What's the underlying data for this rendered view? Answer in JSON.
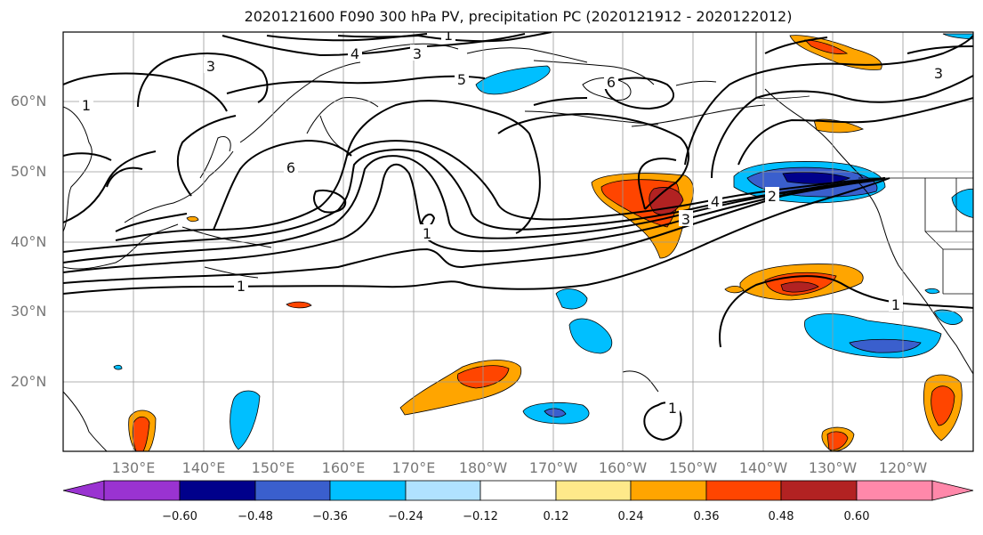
{
  "title": "2020121600 F090 300 hPa PV, precipitation PC (2020121912 - 2020122012)",
  "lat_labels": [
    "60°N",
    "50°N",
    "40°N",
    "30°N",
    "20°N"
  ],
  "lon_labels": [
    "130°E",
    "140°E",
    "150°E",
    "160°E",
    "170°E",
    "180°W",
    "170°W",
    "160°W",
    "150°W",
    "140°W",
    "130°W",
    "120°W"
  ],
  "contour_labels": [
    "1",
    "3",
    "4",
    "3",
    "5",
    "6",
    "6",
    "1",
    "1",
    "4",
    "2",
    "3",
    "1",
    "1",
    "3",
    "1"
  ],
  "colorbar": {
    "colors": [
      "#9a33d1",
      "#00008b",
      "#3a5fcd",
      "#00bfff",
      "#b0e2ff",
      "#ffffff",
      "#fee98a",
      "#ffa500",
      "#ff4500",
      "#b22222",
      "#ff88aa"
    ],
    "ticks": [
      "−0.60",
      "−0.48",
      "−0.36",
      "−0.24",
      "−0.12",
      "0.12",
      "0.24",
      "0.36",
      "0.48",
      "0.60"
    ]
  }
}
